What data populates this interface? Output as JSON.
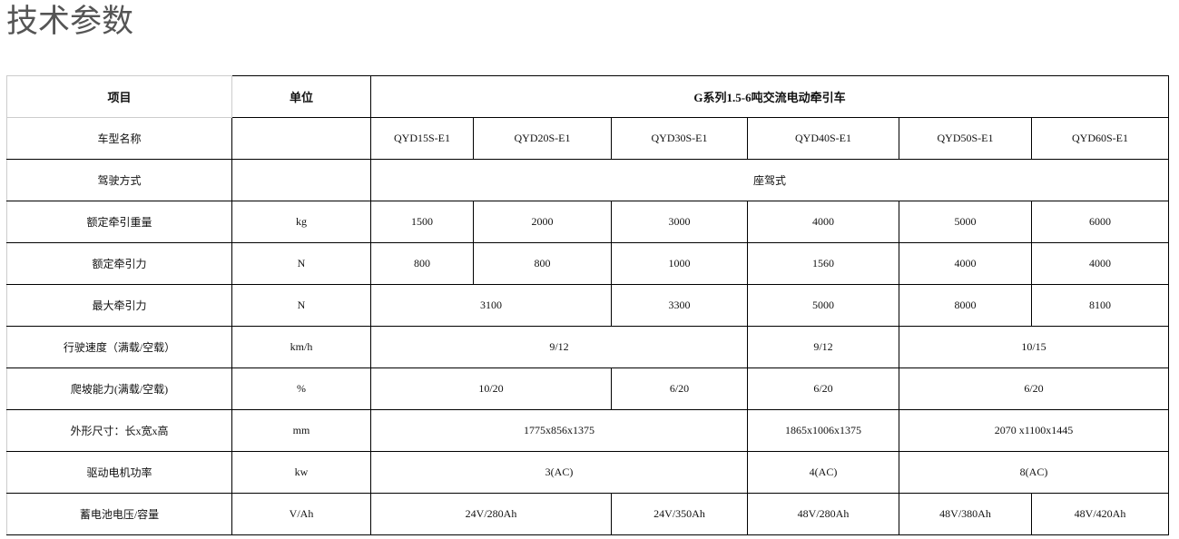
{
  "page_title": "技术参数",
  "table": {
    "header": {
      "item": "项目",
      "unit": "单位",
      "series": "G系列1.5-6吨交流电动牵引车"
    },
    "rows": [
      {
        "label": "车型名称",
        "unit": "",
        "cells": [
          {
            "v": "QYD15S-E1",
            "span": 1
          },
          {
            "v": "QYD20S-E1",
            "span": 1
          },
          {
            "v": "QYD30S-E1",
            "span": 1
          },
          {
            "v": "QYD40S-E1",
            "span": 1
          },
          {
            "v": "QYD50S-E1",
            "span": 1
          },
          {
            "v": "QYD60S-E1",
            "span": 1
          }
        ]
      },
      {
        "label": "驾驶方式",
        "unit": "",
        "cells": [
          {
            "v": "座驾式",
            "span": 6
          }
        ]
      },
      {
        "label": "额定牵引重量",
        "unit": "kg",
        "cells": [
          {
            "v": "1500",
            "span": 1
          },
          {
            "v": "2000",
            "span": 1
          },
          {
            "v": "3000",
            "span": 1
          },
          {
            "v": "4000",
            "span": 1
          },
          {
            "v": "5000",
            "span": 1
          },
          {
            "v": "6000",
            "span": 1
          }
        ]
      },
      {
        "label": "额定牵引力",
        "unit": "N",
        "cells": [
          {
            "v": "800",
            "span": 1
          },
          {
            "v": "800",
            "span": 1
          },
          {
            "v": "1000",
            "span": 1
          },
          {
            "v": "1560",
            "span": 1
          },
          {
            "v": "4000",
            "span": 1
          },
          {
            "v": "4000",
            "span": 1
          }
        ]
      },
      {
        "label": "最大牵引力",
        "unit": "N",
        "cells": [
          {
            "v": "3100",
            "span": 2
          },
          {
            "v": "3300",
            "span": 1
          },
          {
            "v": "5000",
            "span": 1
          },
          {
            "v": "8000",
            "span": 1
          },
          {
            "v": "8100",
            "span": 1
          }
        ]
      },
      {
        "label": "行驶速度（满载/空载）",
        "unit": "km/h",
        "cells": [
          {
            "v": "9/12",
            "span": 3
          },
          {
            "v": "9/12",
            "span": 1
          },
          {
            "v": "10/15",
            "span": 2
          }
        ]
      },
      {
        "label": "爬坡能力(满载/空载)",
        "unit": "%",
        "cells": [
          {
            "v": "10/20",
            "span": 2
          },
          {
            "v": "6/20",
            "span": 1
          },
          {
            "v": "6/20",
            "span": 1
          },
          {
            "v": "6/20",
            "span": 2
          }
        ]
      },
      {
        "label": "外形尺寸：长x宽x高",
        "unit": "mm",
        "cells": [
          {
            "v": "1775x856x1375",
            "span": 3
          },
          {
            "v": "1865x1006x1375",
            "span": 1
          },
          {
            "v": "2070 x1100x1445",
            "span": 2
          }
        ]
      },
      {
        "label": "驱动电机功率",
        "unit": "kw",
        "cells": [
          {
            "v": "3(AC)",
            "span": 3
          },
          {
            "v": "4(AC)",
            "span": 1
          },
          {
            "v": "8(AC)",
            "span": 2
          }
        ]
      },
      {
        "label": "蓄电池电压/容量",
        "unit": "V/Ah",
        "cells": [
          {
            "v": "24V/280Ah",
            "span": 2
          },
          {
            "v": "24V/350Ah",
            "span": 1
          },
          {
            "v": "48V/280Ah",
            "span": 1
          },
          {
            "v": "48V/380Ah",
            "span": 1
          },
          {
            "v": "48V/420Ah",
            "span": 1
          }
        ]
      }
    ]
  }
}
